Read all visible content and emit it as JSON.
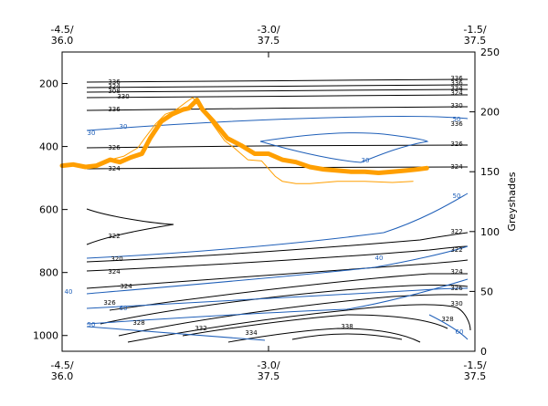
{
  "chart_data": {
    "type": "line",
    "x_axis": {
      "range": [
        -4.5,
        -1.5
      ],
      "ticks": [
        -4.5,
        -3.0,
        -1.5
      ],
      "bottom_tick_labels": [
        [
          "-4.5/",
          "36.0"
        ],
        [
          "-3.0/",
          "37.5"
        ],
        [
          "-1.5/",
          "37.5"
        ]
      ],
      "top_tick_labels": [
        [
          "-4.5/",
          "36.0"
        ],
        [
          "-3.0/",
          "37.5"
        ],
        [
          "-1.5/",
          "37.5"
        ]
      ]
    },
    "y_axis_left": {
      "range": [
        1050,
        100
      ],
      "ticks": [
        200,
        400,
        600,
        800,
        1000
      ],
      "tick_labels": [
        "200",
        "400",
        "600",
        "800",
        "1000"
      ]
    },
    "y_axis_right": {
      "label": "Greyshades",
      "range": [
        0,
        250
      ],
      "ticks": [
        0,
        50,
        100,
        150,
        200,
        250
      ],
      "tick_labels": [
        "0",
        "50",
        "100",
        "150",
        "200",
        "250"
      ]
    },
    "series": [
      {
        "color": "#ff9f00",
        "style": "thick",
        "points": [
          [
            -4.5,
            155
          ],
          [
            -4.42,
            156
          ],
          [
            -4.33,
            154
          ],
          [
            -4.25,
            155
          ],
          [
            -4.15,
            160
          ],
          [
            -4.08,
            158
          ],
          [
            -4.0,
            162
          ],
          [
            -3.92,
            165
          ],
          [
            -3.86,
            178
          ],
          [
            -3.78,
            192
          ],
          [
            -3.7,
            198
          ],
          [
            -3.62,
            202
          ],
          [
            -3.58,
            203
          ],
          [
            -3.52,
            210
          ],
          [
            -3.48,
            202
          ],
          [
            -3.4,
            192
          ],
          [
            -3.3,
            178
          ],
          [
            -3.2,
            172
          ],
          [
            -3.1,
            165
          ],
          [
            -3.0,
            165
          ],
          [
            -2.9,
            160
          ],
          [
            -2.8,
            158
          ],
          [
            -2.7,
            154
          ],
          [
            -2.6,
            152
          ],
          [
            -2.5,
            151
          ],
          [
            -2.4,
            150
          ],
          [
            -2.3,
            150
          ],
          [
            -2.2,
            149
          ],
          [
            -2.1,
            150
          ],
          [
            -2.0,
            151
          ],
          [
            -1.92,
            152
          ],
          [
            -1.85,
            153
          ]
        ]
      },
      {
        "color": "#ff9f00",
        "style": "thin",
        "points": [
          [
            -4.5,
            155
          ],
          [
            -4.4,
            156
          ],
          [
            -4.3,
            154
          ],
          [
            -4.25,
            155
          ],
          [
            -4.15,
            160
          ],
          [
            -4.05,
            163
          ],
          [
            -3.95,
            170
          ],
          [
            -3.9,
            178
          ],
          [
            -3.82,
            190
          ],
          [
            -3.75,
            198
          ],
          [
            -3.68,
            201
          ],
          [
            -3.6,
            208
          ],
          [
            -3.55,
            212
          ],
          [
            -3.5,
            204
          ],
          [
            -3.42,
            192
          ],
          [
            -3.32,
            176
          ],
          [
            -3.25,
            170
          ],
          [
            -3.15,
            160
          ],
          [
            -3.05,
            159
          ],
          [
            -2.95,
            146
          ],
          [
            -2.9,
            142
          ],
          [
            -2.8,
            140
          ],
          [
            -2.7,
            140
          ],
          [
            -2.6,
            141
          ],
          [
            -2.5,
            142
          ],
          [
            -2.3,
            142
          ],
          [
            -2.1,
            141
          ],
          [
            -1.95,
            142
          ]
        ]
      }
    ],
    "contour_labels": {
      "black": [
        "336",
        "324",
        "308",
        "330",
        "336",
        "326",
        "324",
        "322",
        "320",
        "324",
        "324",
        "326",
        "328",
        "332",
        "334",
        "338",
        "336",
        "336",
        "334",
        "324",
        "330",
        "336",
        "326",
        "324",
        "322",
        "322",
        "324",
        "326",
        "330",
        "328"
      ],
      "blue": [
        "30",
        "30",
        "50",
        "30",
        "40",
        "50",
        "40",
        "60",
        "50",
        "60"
      ]
    }
  }
}
